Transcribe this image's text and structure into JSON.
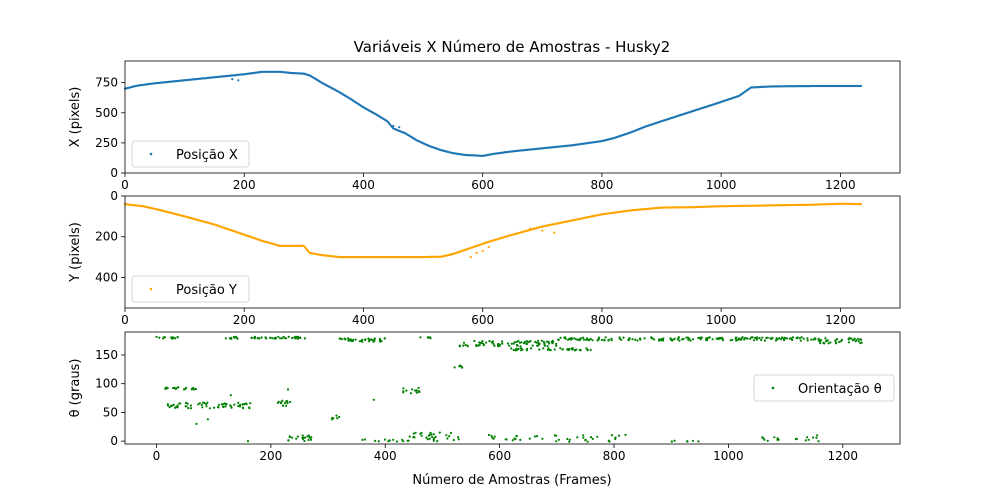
{
  "figure": {
    "title": "Variáveis X Número de Amostras - Husky2",
    "xlabel": "Número de Amostras (Frames)"
  },
  "chart_data": [
    {
      "type": "scatter",
      "ylabel": "X (pixels)",
      "xlim": [
        0,
        1300
      ],
      "ylim": [
        0,
        930
      ],
      "xticks": [
        0,
        200,
        400,
        600,
        800,
        1000,
        1200
      ],
      "yticks": [
        0,
        250,
        500,
        750
      ],
      "legend_loc": "lower-left",
      "grid": false,
      "series": [
        {
          "name": "Posição X",
          "color": "#1f77b4",
          "x": [
            0,
            20,
            50,
            100,
            150,
            200,
            230,
            260,
            280,
            300,
            310,
            330,
            360,
            380,
            400,
            420,
            440,
            450,
            470,
            490,
            510,
            530,
            550,
            570,
            590,
            600,
            620,
            650,
            700,
            750,
            800,
            820,
            850,
            870,
            900,
            950,
            1000,
            1030,
            1050,
            1080,
            1100,
            1150,
            1200,
            1235
          ],
          "y": [
            700,
            725,
            745,
            770,
            795,
            820,
            840,
            840,
            830,
            825,
            810,
            750,
            670,
            610,
            545,
            490,
            430,
            370,
            330,
            270,
            225,
            190,
            165,
            150,
            145,
            142,
            160,
            180,
            205,
            230,
            265,
            290,
            340,
            380,
            430,
            510,
            590,
            640,
            710,
            718,
            720,
            722,
            722,
            722
          ],
          "outliers_x": [
            180,
            190,
            450,
            460
          ],
          "outliers_y": [
            780,
            770,
            390,
            380
          ]
        }
      ]
    },
    {
      "type": "scatter",
      "ylabel": "Y (pixels)",
      "xlim": [
        0,
        1300
      ],
      "ylim": [
        550,
        0
      ],
      "xticks": [
        0,
        200,
        400,
        600,
        800,
        1000,
        1200
      ],
      "yticks": [
        0,
        200,
        400
      ],
      "legend_loc": "lower-left",
      "grid": false,
      "series": [
        {
          "name": "Posição Y",
          "color": "#ffa500",
          "x": [
            0,
            30,
            60,
            100,
            150,
            200,
            230,
            260,
            280,
            300,
            310,
            330,
            360,
            400,
            450,
            500,
            530,
            550,
            570,
            590,
            610,
            650,
            700,
            750,
            800,
            850,
            900,
            950,
            1000,
            1050,
            1100,
            1150,
            1200,
            1235
          ],
          "y": [
            40,
            50,
            70,
            100,
            140,
            190,
            220,
            245,
            245,
            245,
            280,
            290,
            300,
            300,
            300,
            300,
            298,
            285,
            265,
            245,
            225,
            190,
            150,
            120,
            90,
            70,
            57,
            55,
            50,
            48,
            45,
            43,
            38,
            40
          ],
          "outliers_x": [
            580,
            590,
            600,
            610,
            680,
            700,
            720
          ],
          "outliers_y": [
            300,
            280,
            270,
            250,
            160,
            170,
            180
          ]
        }
      ]
    },
    {
      "type": "scatter",
      "ylabel": "θ (graus)",
      "xlim": [
        -55,
        1300
      ],
      "ylim": [
        -5,
        190
      ],
      "xticks": [
        0,
        200,
        400,
        600,
        800,
        1000,
        1200
      ],
      "yticks": [
        0,
        50,
        100,
        150
      ],
      "legend_loc": "center-right",
      "grid": false,
      "series": [
        {
          "name": "Orientação θ",
          "color": "#008000",
          "clusters": [
            {
              "x0": 0,
              "x1": 40,
              "y": 180,
              "jitter": 2,
              "n": 14
            },
            {
              "x0": 120,
              "x1": 260,
              "y": 180,
              "jitter": 2,
              "n": 45
            },
            {
              "x0": 320,
              "x1": 400,
              "y": 176,
              "jitter": 3,
              "n": 40
            },
            {
              "x0": 460,
              "x1": 480,
              "y": 180,
              "jitter": 1,
              "n": 6
            },
            {
              "x0": 530,
              "x1": 700,
              "y": 170,
              "jitter": 5,
              "n": 80
            },
            {
              "x0": 620,
              "x1": 760,
              "y": 160,
              "jitter": 2,
              "n": 40
            },
            {
              "x0": 700,
              "x1": 1160,
              "y": 178,
              "jitter": 3,
              "n": 180
            },
            {
              "x0": 1160,
              "x1": 1235,
              "y": 175,
              "jitter": 5,
              "n": 40
            },
            {
              "x0": 520,
              "x1": 540,
              "y": 130,
              "jitter": 6,
              "n": 6
            },
            {
              "x0": 15,
              "x1": 70,
              "y": 92,
              "jitter": 2,
              "n": 20
            },
            {
              "x0": 20,
              "x1": 170,
              "y": 62,
              "jitter": 5,
              "n": 60
            },
            {
              "x0": 210,
              "x1": 235,
              "y": 66,
              "jitter": 5,
              "n": 14
            },
            {
              "x0": 430,
              "x1": 460,
              "y": 88,
              "jitter": 5,
              "n": 14
            },
            {
              "x0": 300,
              "x1": 320,
              "y": 40,
              "jitter": 6,
              "n": 6
            },
            {
              "x0": 440,
              "x1": 530,
              "y": 8,
              "jitter": 8,
              "n": 30
            },
            {
              "x0": 230,
              "x1": 275,
              "y": 5,
              "jitter": 5,
              "n": 20
            },
            {
              "x0": 350,
              "x1": 450,
              "y": 1,
              "jitter": 2,
              "n": 14
            },
            {
              "x0": 580,
              "x1": 820,
              "y": 5,
              "jitter": 6,
              "n": 40
            },
            {
              "x0": 900,
              "x1": 960,
              "y": 0,
              "jitter": 1,
              "n": 6
            },
            {
              "x0": 1050,
              "x1": 1160,
              "y": 3,
              "jitter": 4,
              "n": 16
            }
          ],
          "outliers_x": [
            70,
            90,
            160,
            380,
            1155,
            130,
            230
          ],
          "outliers_y": [
            30,
            38,
            0,
            72,
            10,
            80,
            90
          ]
        }
      ]
    }
  ]
}
